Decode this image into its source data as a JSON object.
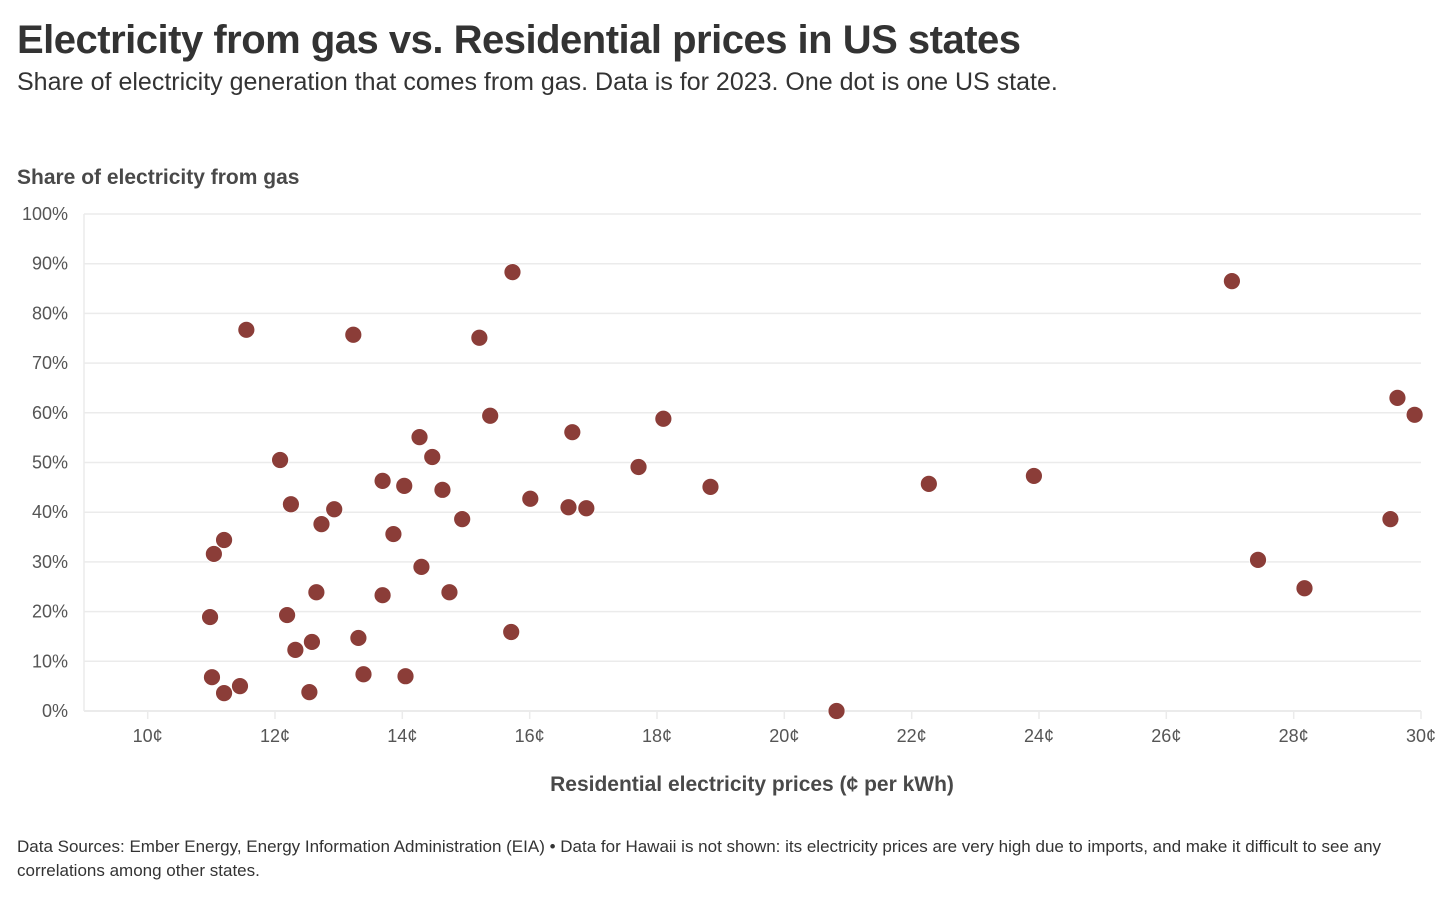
{
  "title": "Electricity from gas vs. Residential prices in US states",
  "subtitle": "Share of electricity generation that comes from gas. Data is for 2023. One dot is one US state.",
  "footer": "Data Sources: Ember Energy, Energy Information Administration (EIA) • Data for Hawaii is not shown: its electricity prices are very high due to imports, and make it difficult to see any correlations among other states.",
  "colors": {
    "dot": "#8b3d38",
    "grid": "#ebebeb",
    "text": "#333333"
  },
  "chart_data": {
    "type": "scatter",
    "title": "Electricity from gas vs. Residential prices in US states",
    "subtitle": "Share of electricity generation that comes from gas. Data is for 2023. One dot is one US state.",
    "xlabel": "Residential electricity prices (¢ per kWh)",
    "ylabel": "Share of electricity from gas",
    "xlim": [
      9,
      30
    ],
    "ylim": [
      0,
      100
    ],
    "x_ticks": [
      10,
      12,
      14,
      16,
      18,
      20,
      22,
      24,
      26,
      28,
      30
    ],
    "x_tick_labels": [
      "10¢",
      "12¢",
      "14¢",
      "16¢",
      "18¢",
      "20¢",
      "22¢",
      "24¢",
      "26¢",
      "28¢",
      "30¢"
    ],
    "y_ticks": [
      0,
      10,
      20,
      30,
      40,
      50,
      60,
      70,
      80,
      90,
      100
    ],
    "y_tick_labels": [
      "0%",
      "10%",
      "20%",
      "30%",
      "40%",
      "50%",
      "60%",
      "70%",
      "80%",
      "90%",
      "100%"
    ],
    "grid": "horizontal",
    "legend": "none",
    "points": [
      {
        "x": 11.55,
        "y": 76.7
      },
      {
        "x": 13.23,
        "y": 75.7
      },
      {
        "x": 15.73,
        "y": 88.3
      },
      {
        "x": 15.21,
        "y": 75.1
      },
      {
        "x": 27.03,
        "y": 86.5
      },
      {
        "x": 29.63,
        "y": 63.0
      },
      {
        "x": 29.9,
        "y": 59.6
      },
      {
        "x": 15.38,
        "y": 59.4
      },
      {
        "x": 16.67,
        "y": 56.1
      },
      {
        "x": 18.1,
        "y": 58.8
      },
      {
        "x": 14.27,
        "y": 55.1
      },
      {
        "x": 12.08,
        "y": 50.5
      },
      {
        "x": 14.47,
        "y": 51.1
      },
      {
        "x": 17.71,
        "y": 49.1
      },
      {
        "x": 13.69,
        "y": 46.3
      },
      {
        "x": 14.03,
        "y": 45.3
      },
      {
        "x": 14.63,
        "y": 44.5
      },
      {
        "x": 18.84,
        "y": 45.1
      },
      {
        "x": 22.27,
        "y": 45.7
      },
      {
        "x": 23.92,
        "y": 47.3
      },
      {
        "x": 16.01,
        "y": 42.7
      },
      {
        "x": 12.25,
        "y": 41.6
      },
      {
        "x": 12.93,
        "y": 40.6
      },
      {
        "x": 16.61,
        "y": 41.0
      },
      {
        "x": 16.89,
        "y": 40.8
      },
      {
        "x": 14.94,
        "y": 38.6
      },
      {
        "x": 12.73,
        "y": 37.6
      },
      {
        "x": 29.52,
        "y": 38.6
      },
      {
        "x": 11.2,
        "y": 34.4
      },
      {
        "x": 11.04,
        "y": 31.6
      },
      {
        "x": 13.86,
        "y": 35.6
      },
      {
        "x": 14.3,
        "y": 29.0
      },
      {
        "x": 27.44,
        "y": 30.4
      },
      {
        "x": 12.65,
        "y": 23.9
      },
      {
        "x": 13.69,
        "y": 23.3
      },
      {
        "x": 14.74,
        "y": 23.9
      },
      {
        "x": 28.17,
        "y": 24.7
      },
      {
        "x": 10.98,
        "y": 18.9
      },
      {
        "x": 12.19,
        "y": 19.3
      },
      {
        "x": 15.71,
        "y": 15.9
      },
      {
        "x": 13.31,
        "y": 14.7
      },
      {
        "x": 12.58,
        "y": 13.9
      },
      {
        "x": 12.32,
        "y": 12.3
      },
      {
        "x": 11.01,
        "y": 6.8
      },
      {
        "x": 13.39,
        "y": 7.4
      },
      {
        "x": 14.05,
        "y": 7.0
      },
      {
        "x": 11.45,
        "y": 5.0
      },
      {
        "x": 11.2,
        "y": 3.6
      },
      {
        "x": 12.54,
        "y": 3.8
      },
      {
        "x": 20.82,
        "y": 0.0
      }
    ]
  }
}
